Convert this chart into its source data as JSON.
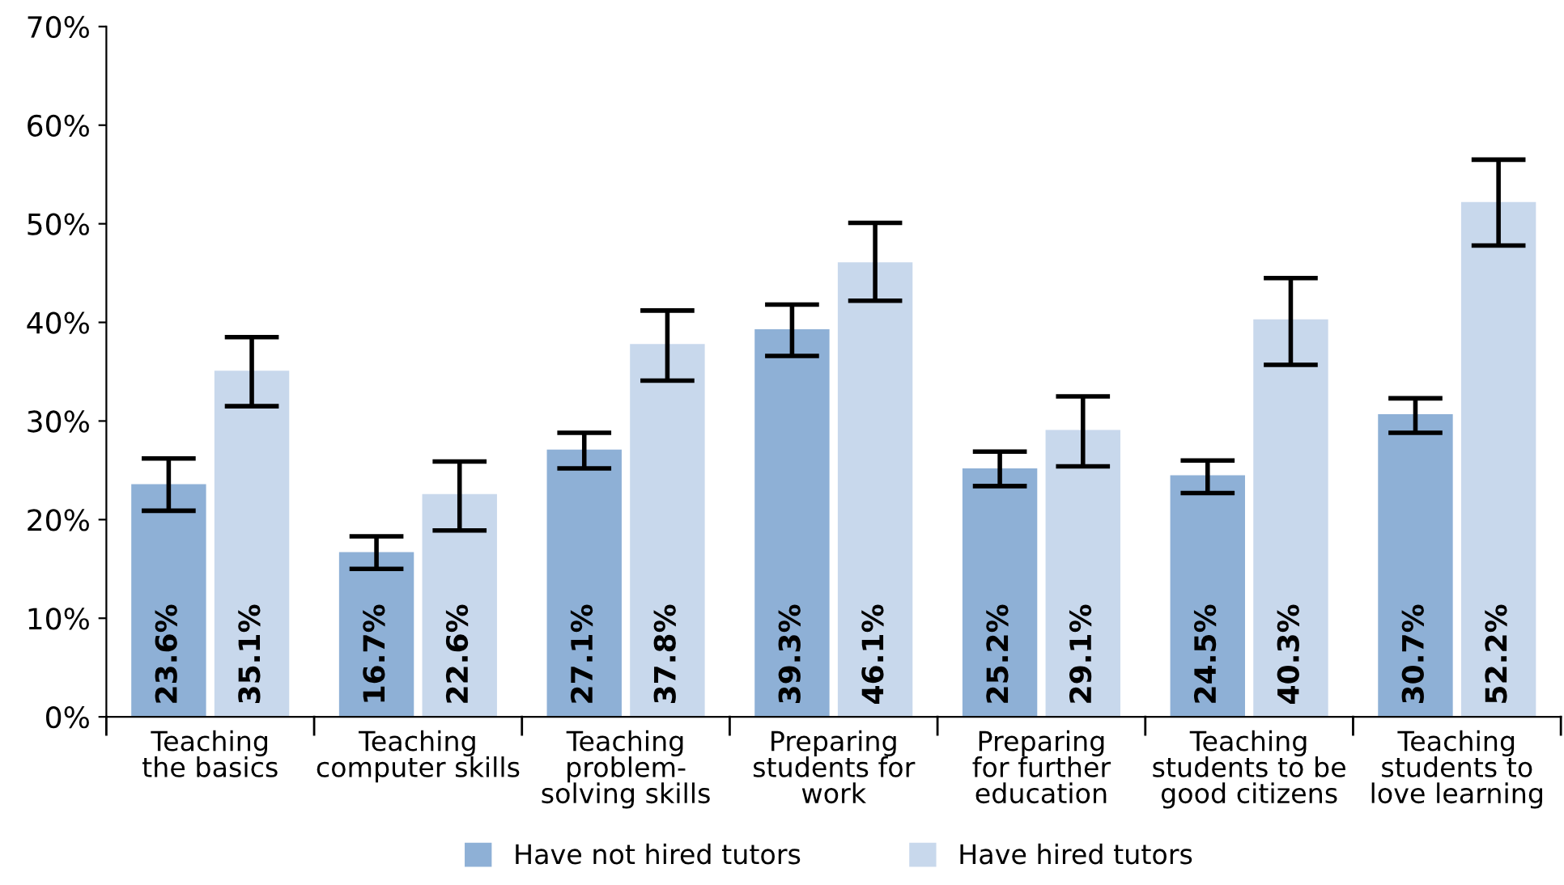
{
  "chart_data": {
    "type": "bar",
    "categories": [
      "Teaching\nthe basics",
      "Teaching\ncomputer skills",
      "Teaching\nproblem-\nsolving skills",
      "Preparing\nstudents for\nwork",
      "Preparing\nfor further\neducation",
      "Teaching\nstudents to be\ngood citizens",
      "Teaching\nstudents to\nlove learning"
    ],
    "series": [
      {
        "name": "Have not hired tutors",
        "color": "#8eb0d6",
        "values": [
          23.6,
          16.7,
          27.1,
          39.3,
          25.2,
          24.5,
          30.7
        ],
        "value_labels": [
          "23.6%",
          "16.7%",
          "27.1%",
          "39.3%",
          "25.2%",
          "24.5%",
          "30.7%"
        ],
        "errors": [
          [
            20.9,
            26.2
          ],
          [
            15.0,
            18.3
          ],
          [
            25.2,
            28.8
          ],
          [
            36.6,
            41.8
          ],
          [
            23.4,
            26.9
          ],
          [
            22.7,
            26.0
          ],
          [
            28.8,
            32.3
          ]
        ]
      },
      {
        "name": "Have hired tutors",
        "color": "#c8d8ec",
        "values": [
          35.1,
          22.6,
          37.8,
          46.1,
          29.1,
          40.3,
          52.2
        ],
        "value_labels": [
          "35.1%",
          "22.6%",
          "37.8%",
          "46.1%",
          "29.1%",
          "40.3%",
          "52.2%"
        ],
        "errors": [
          [
            31.5,
            38.5
          ],
          [
            18.9,
            25.9
          ],
          [
            34.1,
            41.2
          ],
          [
            42.2,
            50.1
          ],
          [
            25.4,
            32.5
          ],
          [
            35.7,
            44.5
          ],
          [
            47.8,
            56.5
          ]
        ]
      }
    ],
    "ylim": [
      0,
      70
    ],
    "yticks": [
      {
        "value": 0,
        "label": "0%"
      },
      {
        "value": 10,
        "label": "10%"
      },
      {
        "value": 20,
        "label": "20%"
      },
      {
        "value": 30,
        "label": "30%"
      },
      {
        "value": 40,
        "label": "40%"
      },
      {
        "value": 50,
        "label": "50%"
      },
      {
        "value": 60,
        "label": "60%"
      },
      {
        "value": 70,
        "label": "70%"
      }
    ],
    "grid": false,
    "legend": "bottom"
  }
}
